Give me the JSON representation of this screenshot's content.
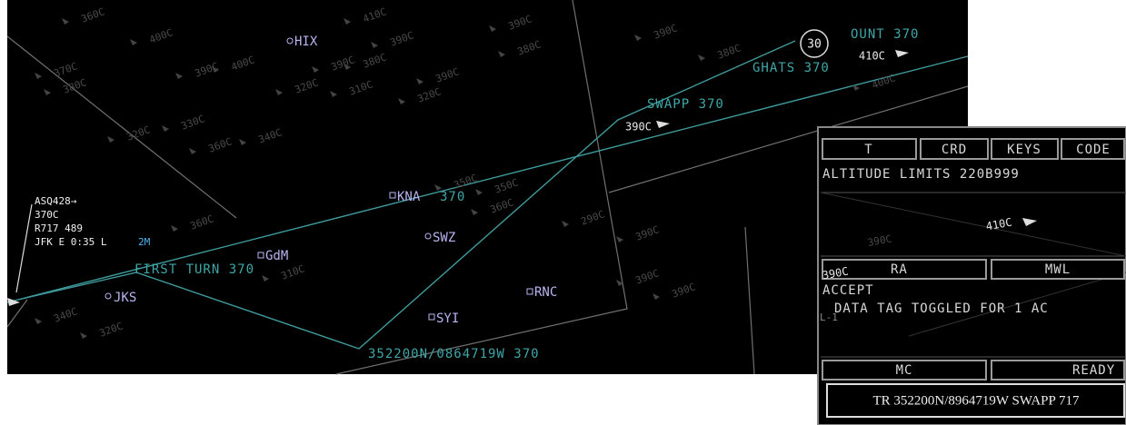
{
  "radar": {
    "fixes": [
      "HIX",
      "SWZ",
      "GdM",
      "JKS",
      "RNC",
      "SYI",
      "KNA"
    ],
    "route_labels": [
      "OUNT 370",
      "GHATS 370",
      "SWAPP 370",
      "FIRST TURN 370",
      "352200N/0864719W 370",
      "370"
    ],
    "holding_number": "30",
    "aircraft_labels": [
      "410C",
      "390C"
    ],
    "datablock": {
      "callsign": "ASQ428→",
      "altitude": "370C",
      "route": "R717 489",
      "eta": "JFK E 0:35 L",
      "leader": "2M"
    },
    "ghost_labels": [
      "360C",
      "400C",
      "410C",
      "390C",
      "390C",
      "370C",
      "380C",
      "390C",
      "400C",
      "320C",
      "390C",
      "380C",
      "310C",
      "390C",
      "380C",
      "320C",
      "330C",
      "360C",
      "340C",
      "390C",
      "380C",
      "400C",
      "320C",
      "350C",
      "290C",
      "350C",
      "360C",
      "390C",
      "390C",
      "360C",
      "310C",
      "340C",
      "320C",
      "390C"
    ]
  },
  "panel": {
    "tabs": [
      "T",
      "CRD",
      "KEYS",
      "CODE"
    ],
    "altitude_limits": "ALTITUDE LIMITS 220B999",
    "aircraft_label": "410C",
    "ghost_label": "390C",
    "ra_label": "390C",
    "buttons": [
      "RA",
      "MWL",
      "MC",
      "READY"
    ],
    "status": "ACCEPT",
    "message": "DATA TAG TOGGLED FOR 1 AC",
    "side_tag": "L-1",
    "input": "TR 352200N/8964719W SWAPP 717"
  }
}
